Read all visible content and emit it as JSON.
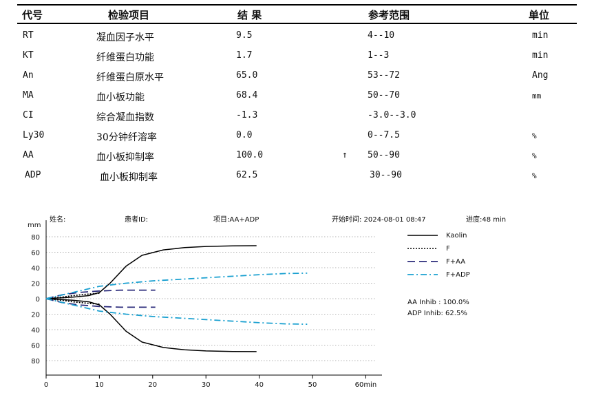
{
  "table": {
    "headers": [
      "代号",
      "检验项目",
      "结 果",
      "参考范围",
      "单位"
    ],
    "rows": [
      {
        "code": "RT",
        "name": "凝血因子水平",
        "result": "9.5",
        "flag": "",
        "range": "4--10",
        "unit": "min"
      },
      {
        "code": "KT",
        "name": "纤维蛋白功能",
        "result": "1.7",
        "flag": "",
        "range": "1--3",
        "unit": "min"
      },
      {
        "code": "An",
        "name": "纤维蛋白原水平",
        "result": "65.0",
        "flag": "",
        "range": "53--72",
        "unit": "Ang"
      },
      {
        "code": "MA",
        "name": "血小板功能",
        "result": "68.4",
        "flag": "",
        "range": "50--70",
        "unit": "mm"
      },
      {
        "code": "CI",
        "name": "综合凝血指数",
        "result": "-1.3",
        "flag": "",
        "range": "-3.0--3.0",
        "unit": ""
      },
      {
        "code": "Ly30",
        "name": "30分钟纤溶率",
        "result": "0.0",
        "flag": "",
        "range": "0--7.5",
        "unit": "%"
      },
      {
        "code": "AA",
        "name": "血小板抑制率",
        "result": "100.0",
        "flag": "↑",
        "range": "50--90",
        "unit": "%"
      },
      {
        "code": "ADP",
        "name": "血小板抑制率",
        "result": "62.5",
        "flag": "",
        "range": "30--90",
        "unit": "%"
      }
    ]
  },
  "chart_header": {
    "name": "姓名:",
    "patient_id": "患者ID:",
    "project": "项目:AA+ADP",
    "start_time": "开始时间: 2024-08-01 08:47",
    "progress": "进度:48 min"
  },
  "chart_data": {
    "type": "line",
    "ylabel": "mm",
    "xlabel": "",
    "y_ticks": [
      "80",
      "60",
      "40",
      "20",
      "0",
      "20",
      "40",
      "60",
      "80"
    ],
    "x_ticks": [
      "0",
      "10",
      "20",
      "30",
      "40",
      "50",
      "60min"
    ],
    "xlim": [
      0,
      60
    ],
    "ylim": [
      -80,
      80
    ],
    "grid": true,
    "legend_position": "right",
    "series": [
      {
        "name": "Kaolin",
        "style": "solid",
        "color": "#000000",
        "x": [
          0,
          5,
          8,
          10,
          12,
          15,
          18,
          22,
          26,
          30,
          35,
          39.5
        ],
        "y": [
          0,
          2,
          4,
          8,
          20,
          42,
          56,
          63,
          66,
          67.5,
          68.2,
          68.4
        ]
      },
      {
        "name": "F",
        "style": "dotted",
        "color": "#000000",
        "x": [
          0,
          3,
          5,
          8,
          10
        ],
        "y": [
          0,
          2,
          4,
          6,
          7
        ]
      },
      {
        "name": "F+AA",
        "style": "dashed",
        "color": "#2a2a7a",
        "x": [
          0,
          3,
          6,
          10,
          14,
          18,
          20.5
        ],
        "y": [
          0,
          5,
          8,
          10,
          11,
          11,
          11
        ]
      },
      {
        "name": "F+ADP",
        "style": "dashdot",
        "color": "#1aa0d0",
        "x": [
          0,
          5,
          10,
          15,
          20,
          25,
          30,
          35,
          40,
          45,
          49
        ],
        "y": [
          0,
          8,
          16,
          20,
          23,
          25,
          27,
          29,
          31,
          32.5,
          33
        ]
      }
    ]
  },
  "inhibition": {
    "aa": "AA Inhib : 100.0%",
    "adp": "ADP Inhib: 62.5%"
  },
  "colors": {
    "kaolin": "#000000",
    "f": "#000000",
    "f_aa": "#2a2a7a",
    "f_adp": "#1aa0d0",
    "grid": "#9a9a9a"
  }
}
